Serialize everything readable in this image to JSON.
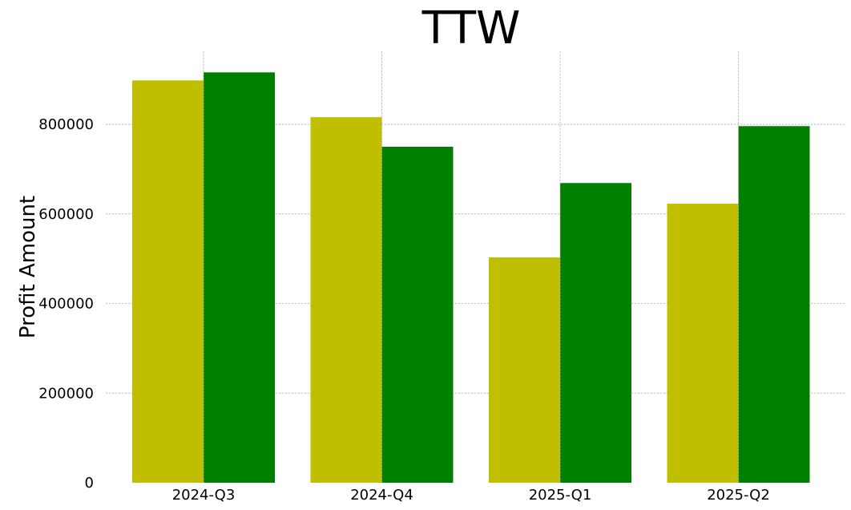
{
  "chart_data": {
    "type": "bar",
    "title": "TTW",
    "xlabel": "",
    "ylabel": "Profit Amount",
    "categories": [
      "2024-Q3",
      "2024-Q4",
      "2025-Q1",
      "2025-Q2"
    ],
    "series": [
      {
        "values": [
          898000,
          816000,
          503000,
          623000
        ],
        "color": "#bfbf00"
      },
      {
        "values": [
          916000,
          750000,
          669000,
          796000
        ],
        "color": "#008000"
      }
    ],
    "yticks": [
      0,
      200000,
      400000,
      600000,
      800000
    ],
    "ytick_labels": [
      "0",
      "200000",
      "400000",
      "600000",
      "800000"
    ],
    "ylim": [
      0,
      963000
    ],
    "grid": true,
    "legend": "none"
  }
}
